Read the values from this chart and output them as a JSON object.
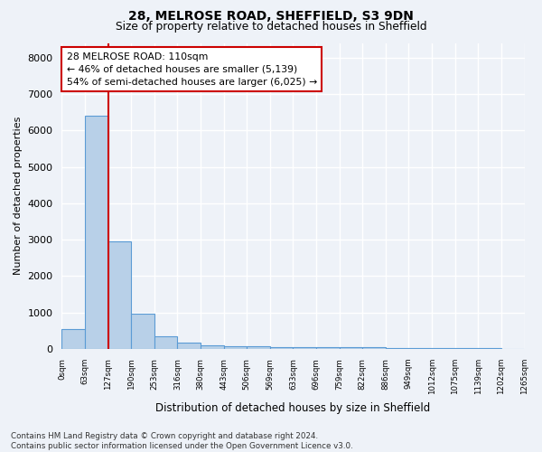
{
  "title": "28, MELROSE ROAD, SHEFFIELD, S3 9DN",
  "subtitle": "Size of property relative to detached houses in Sheffield",
  "xlabel": "Distribution of detached houses by size in Sheffield",
  "ylabel": "Number of detached properties",
  "bar_values": [
    550,
    6400,
    2950,
    975,
    340,
    175,
    110,
    80,
    75,
    60,
    55,
    50,
    45,
    40,
    35,
    30,
    25,
    20,
    15,
    10
  ],
  "tick_labels": [
    "0sqm",
    "63sqm",
    "127sqm",
    "190sqm",
    "253sqm",
    "316sqm",
    "380sqm",
    "443sqm",
    "506sqm",
    "569sqm",
    "633sqm",
    "696sqm",
    "759sqm",
    "822sqm",
    "886sqm",
    "949sqm",
    "1012sqm",
    "1075sqm",
    "1139sqm",
    "1202sqm",
    "1265sqm"
  ],
  "bar_color": "#b8d0e8",
  "bar_edge_color": "#5b9bd5",
  "vline_color": "#cc0000",
  "vline_pos": 1.5,
  "annotation_text": "28 MELROSE ROAD: 110sqm\n← 46% of detached houses are smaller (5,139)\n54% of semi-detached houses are larger (6,025) →",
  "annotation_box_color": "#ffffff",
  "annotation_box_edge": "#cc0000",
  "ylim": [
    0,
    8400
  ],
  "yticks": [
    0,
    1000,
    2000,
    3000,
    4000,
    5000,
    6000,
    7000,
    8000
  ],
  "footnote": "Contains HM Land Registry data © Crown copyright and database right 2024.\nContains public sector information licensed under the Open Government Licence v3.0.",
  "bg_color": "#eef2f8",
  "plot_bg_color": "#eef2f8",
  "grid_color": "#ffffff"
}
